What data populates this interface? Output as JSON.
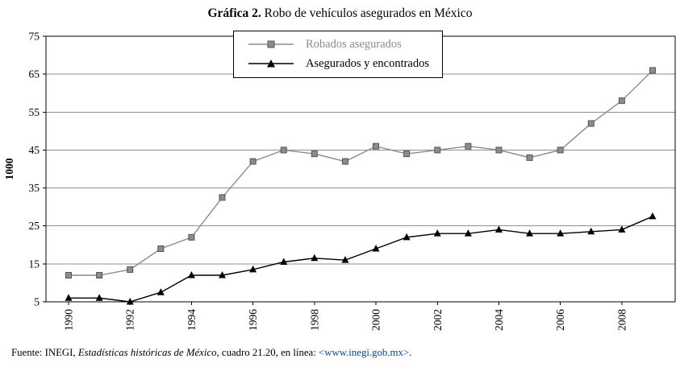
{
  "title": {
    "prefix": "Gráfica 2.",
    "rest": " Robo de vehículos asegurados en México"
  },
  "chart_data": {
    "type": "line",
    "title": "Gráfica 2. Robo de vehículos asegurados en México",
    "x": [
      1990,
      1991,
      1992,
      1993,
      1994,
      1995,
      1996,
      1997,
      1998,
      1999,
      2000,
      2001,
      2002,
      2003,
      2004,
      2005,
      2006,
      2007,
      2008,
      2009
    ],
    "xticks": [
      1990,
      1992,
      1994,
      1996,
      1998,
      2000,
      2002,
      2004,
      2006,
      2008
    ],
    "ylabel": "1000",
    "ylim": [
      5,
      75
    ],
    "yticks": [
      5,
      15,
      25,
      35,
      45,
      55,
      65,
      75
    ],
    "grid": true,
    "grid_color": "#909090",
    "axis_color": "#000000",
    "legend_position": "top-center",
    "series": [
      {
        "name": "Robados asegurados",
        "marker": "square",
        "color": "#8c8c8c",
        "edge": "#555555",
        "values": [
          12,
          12,
          13.5,
          19,
          22,
          32.5,
          42,
          45,
          44,
          42,
          46,
          44,
          45,
          46,
          45,
          43,
          45,
          52,
          58,
          66
        ]
      },
      {
        "name": "Asegurados y encontrados",
        "marker": "triangle",
        "color": "#000000",
        "edge": "#000000",
        "values": [
          6,
          6,
          5,
          7.5,
          12,
          12,
          13.5,
          15.5,
          16.5,
          16,
          19,
          22,
          23,
          23,
          24,
          23,
          23,
          23.5,
          24,
          27.5
        ]
      }
    ]
  },
  "footer": {
    "prefix": "Fuente: INEGI, ",
    "italic": "Estadísticas históricas de México",
    "middle": ", cuadro 21.20, en línea: ",
    "link": "<www.inegi.gob.mx>",
    "suffix": ".",
    "link_color": "#0645ad"
  }
}
